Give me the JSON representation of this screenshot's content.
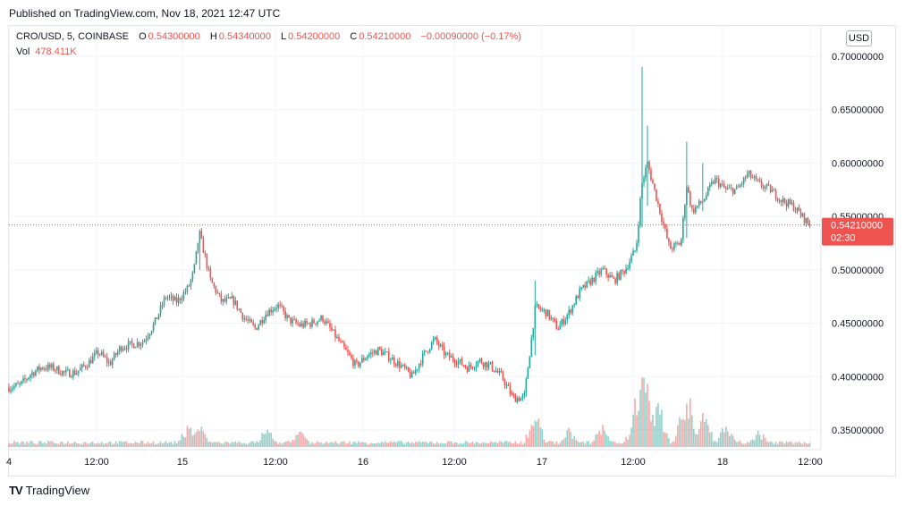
{
  "published": "Published on TradingView.com, Nov 18, 2021 12:47 UTC",
  "legend": {
    "symbol": "CRO/USD, 5, COINBASE",
    "o_label": "O",
    "o_value": "0.54300000",
    "h_label": "H",
    "h_value": "0.54340000",
    "l_label": "L",
    "l_value": "0.54200000",
    "c_label": "C",
    "c_value": "0.54210000",
    "change": "−0.00090000 (−0.17%)",
    "vol_label": "Vol",
    "vol_value": "478.411K"
  },
  "currency_button": "USD",
  "brand": {
    "logo": "TV",
    "name": "TradingView"
  },
  "colors": {
    "up": "#26a69a",
    "down": "#ef5350",
    "grid": "#f0f3fa",
    "price_line": "#ef5350"
  },
  "chart_data": {
    "type": "candlestick",
    "y_ticks": [
      "0.35000000",
      "0.40000000",
      "0.45000000",
      "0.50000000",
      "0.55000000",
      "0.60000000",
      "0.65000000",
      "0.70000000"
    ],
    "x_ticks": [
      "4",
      "12:00",
      "15",
      "12:00",
      "16",
      "12:00",
      "17",
      "12:00",
      "18",
      "12:00"
    ],
    "ylim": [
      0.33,
      0.71
    ],
    "last_price": {
      "value": 0.5421,
      "label": "0.54210000",
      "countdown": "02:30"
    },
    "close_path": [
      [
        0,
        0.39
      ],
      [
        2,
        0.392
      ],
      [
        4,
        0.403
      ],
      [
        6,
        0.409
      ],
      [
        8,
        0.408
      ],
      [
        10,
        0.403
      ],
      [
        12,
        0.404
      ],
      [
        14,
        0.412
      ],
      [
        16,
        0.423
      ],
      [
        18,
        0.412
      ],
      [
        20,
        0.428
      ],
      [
        22,
        0.43
      ],
      [
        24,
        0.433
      ],
      [
        26,
        0.45
      ],
      [
        28,
        0.475
      ],
      [
        30,
        0.47
      ],
      [
        32,
        0.483
      ],
      [
        33,
        0.498
      ],
      [
        34,
        0.535
      ],
      [
        36,
        0.49
      ],
      [
        38,
        0.47
      ],
      [
        40,
        0.472
      ],
      [
        42,
        0.455
      ],
      [
        44,
        0.445
      ],
      [
        46,
        0.46
      ],
      [
        48,
        0.467
      ],
      [
        50,
        0.453
      ],
      [
        52,
        0.448
      ],
      [
        54,
        0.45
      ],
      [
        56,
        0.455
      ],
      [
        58,
        0.44
      ],
      [
        60,
        0.425
      ],
      [
        62,
        0.41
      ],
      [
        64,
        0.42
      ],
      [
        66,
        0.425
      ],
      [
        68,
        0.418
      ],
      [
        70,
        0.41
      ],
      [
        72,
        0.4
      ],
      [
        74,
        0.42
      ],
      [
        76,
        0.435
      ],
      [
        78,
        0.42
      ],
      [
        80,
        0.415
      ],
      [
        82,
        0.408
      ],
      [
        84,
        0.415
      ],
      [
        86,
        0.41
      ],
      [
        88,
        0.4
      ],
      [
        90,
        0.38
      ],
      [
        92,
        0.38
      ],
      [
        94,
        0.465
      ],
      [
        96,
        0.46
      ],
      [
        98,
        0.445
      ],
      [
        100,
        0.46
      ],
      [
        102,
        0.48
      ],
      [
        104,
        0.49
      ],
      [
        106,
        0.5
      ],
      [
        108,
        0.49
      ],
      [
        110,
        0.5
      ],
      [
        112,
        0.52
      ],
      [
        113,
        0.58
      ],
      [
        114,
        0.6
      ],
      [
        116,
        0.56
      ],
      [
        118,
        0.52
      ],
      [
        120,
        0.525
      ],
      [
        121,
        0.58
      ],
      [
        122,
        0.555
      ],
      [
        124,
        0.565
      ],
      [
        126,
        0.585
      ],
      [
        128,
        0.575
      ],
      [
        130,
        0.575
      ],
      [
        132,
        0.59
      ],
      [
        134,
        0.58
      ],
      [
        136,
        0.575
      ],
      [
        138,
        0.565
      ],
      [
        140,
        0.56
      ],
      [
        142,
        0.548
      ],
      [
        143,
        0.5421
      ]
    ],
    "spikes": [
      {
        "t": 113,
        "high": 0.69,
        "low": 0.54
      },
      {
        "t": 114,
        "high": 0.635,
        "low": 0.56
      },
      {
        "t": 121,
        "high": 0.62,
        "low": 0.53
      },
      {
        "t": 124,
        "high": 0.6,
        "low": 0.555
      },
      {
        "t": 34,
        "high": 0.538,
        "low": 0.5
      },
      {
        "t": 94,
        "high": 0.49,
        "low": 0.42
      }
    ],
    "volume": {
      "base": 3,
      "bursts": [
        {
          "t": 32,
          "v": 30
        },
        {
          "t": 34,
          "v": 28
        },
        {
          "t": 46,
          "v": 25
        },
        {
          "t": 52,
          "v": 20
        },
        {
          "t": 94,
          "v": 45
        },
        {
          "t": 100,
          "v": 25
        },
        {
          "t": 106,
          "v": 30
        },
        {
          "t": 112,
          "v": 48
        },
        {
          "t": 113,
          "v": 118
        },
        {
          "t": 114,
          "v": 80
        },
        {
          "t": 116,
          "v": 55
        },
        {
          "t": 121,
          "v": 75
        },
        {
          "t": 124,
          "v": 45
        },
        {
          "t": 128,
          "v": 30
        },
        {
          "t": 134,
          "v": 22
        }
      ]
    }
  }
}
